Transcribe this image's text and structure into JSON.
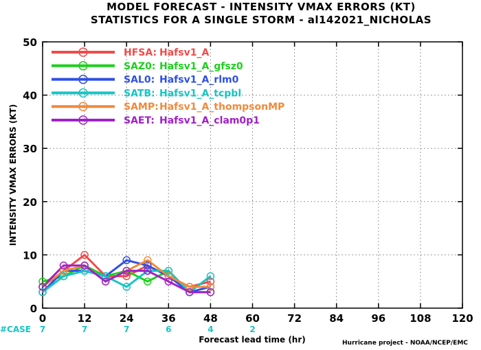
{
  "chart_data": {
    "type": "line",
    "title": "MODEL FORECAST - INTENSITY VMAX ERRORS (KT)",
    "subtitle": "STATISTICS FOR A SINGLE STORM - al142021_NICHOLAS",
    "xlabel": "Forecast lead time (hr)",
    "ylabel": "INTENSITY VMAX ERRORS (KT)",
    "xlim": [
      0,
      120
    ],
    "ylim": [
      0,
      50
    ],
    "x_ticks": [
      0,
      12,
      24,
      36,
      48,
      60,
      72,
      84,
      96,
      108,
      120
    ],
    "y_ticks": [
      0,
      10,
      20,
      30,
      40,
      50
    ],
    "grid": true,
    "legend_position": "top-left",
    "case_label": "#CASE",
    "case_counts": [
      {
        "x": 0,
        "n": "7"
      },
      {
        "x": 12,
        "n": "7"
      },
      {
        "x": 24,
        "n": "7"
      },
      {
        "x": 36,
        "n": "6"
      },
      {
        "x": 48,
        "n": "4"
      },
      {
        "x": 60,
        "n": "2"
      }
    ],
    "credit": "Hurricane project - NOAA/NCEP/EMC",
    "x": [
      0,
      6,
      12,
      18,
      24,
      30,
      36,
      42,
      48
    ],
    "series": [
      {
        "code": "HFSA:",
        "name": "Hafsv1_A",
        "color": "#f24a4a",
        "values": [
          4,
          7,
          10,
          6,
          6,
          8,
          6,
          4,
          5
        ]
      },
      {
        "code": "SAZ0:",
        "name": "Hafsv1_A_gfsz0",
        "color": "#1ecf1e",
        "values": [
          5,
          6,
          8,
          6,
          7,
          5,
          7,
          3,
          3
        ]
      },
      {
        "code": "SAL0:",
        "name": "Hafsv1_A_rlm0",
        "color": "#2e4fe6",
        "values": [
          3,
          7,
          7,
          6,
          9,
          8,
          6,
          3,
          4
        ]
      },
      {
        "code": "SATB:",
        "name": "Hafsv1_A_tcpbl",
        "color": "#17c4c4",
        "values": [
          3,
          6,
          7,
          6,
          4,
          7,
          7,
          3,
          6
        ]
      },
      {
        "code": "SAMP:",
        "name": "Hafsv1_A_thompsonMP",
        "color": "#f08a3a",
        "values": [
          4,
          7,
          8,
          5,
          7,
          9,
          6,
          4,
          4
        ]
      },
      {
        "code": "SAET:",
        "name": "Hafsv1_A_clam0p1",
        "color": "#a020c8",
        "values": [
          4,
          8,
          8,
          5,
          7,
          7,
          5,
          3,
          3
        ]
      }
    ]
  }
}
